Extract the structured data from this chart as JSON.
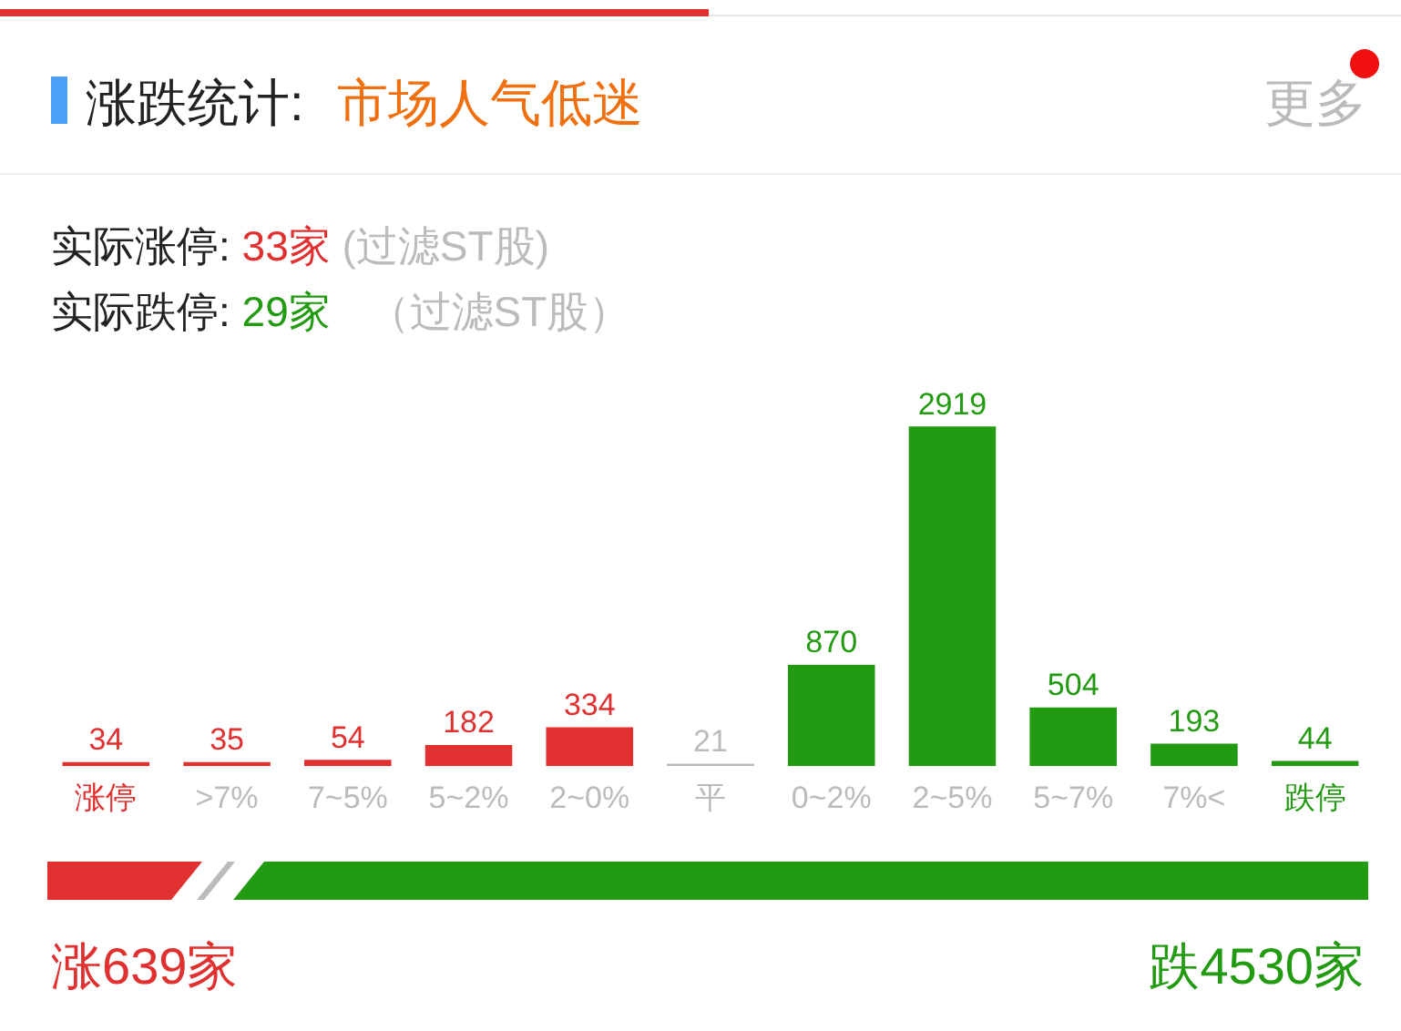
{
  "chart_data": {
    "type": "bar",
    "title": "涨跌统计:",
    "subtitle": "市场人气低迷",
    "annotations": [
      "更多",
      "实际涨停:",
      "33家",
      "(过滤ST股)",
      "实际跌停:",
      "29家",
      "（过滤ST股）",
      "涨639家",
      "跌4530家"
    ],
    "categories": [
      "涨停",
      ">7%",
      "7~5%",
      "5~2%",
      "2~0%",
      "平",
      "0~2%",
      "2~5%",
      "5~7%",
      "7%<",
      "跌停"
    ],
    "values": [
      34,
      35,
      54,
      182,
      334,
      21,
      870,
      2919,
      504,
      193,
      44
    ],
    "colors": [
      "#e03030",
      "#e03030",
      "#e03030",
      "#e03030",
      "#e03030",
      "#bbbbbb",
      "#229a11",
      "#229a11",
      "#229a11",
      "#229a11",
      "#229a11"
    ],
    "data_labels": true,
    "grid": false,
    "legend": false
  }
}
